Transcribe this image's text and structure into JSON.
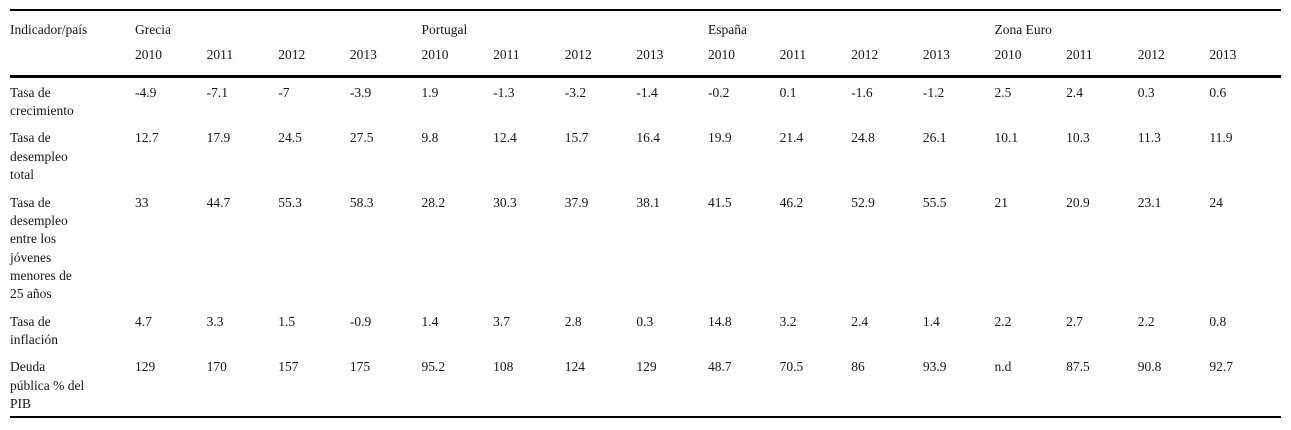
{
  "colors": {
    "text": "#161616",
    "rule": "#000000",
    "background": "#ffffff"
  },
  "table": {
    "corner_label": "Indicador/país",
    "groups": [
      {
        "name": "Grecia",
        "years": [
          "2010",
          "2011",
          "2012",
          "2013"
        ]
      },
      {
        "name": "Portugal",
        "years": [
          "2010",
          "2011",
          "2012",
          "2013"
        ]
      },
      {
        "name": "España",
        "years": [
          "2010",
          "2011",
          "2012",
          "2013"
        ]
      },
      {
        "name": "Zona Euro",
        "years": [
          "2010",
          "2011",
          "2012",
          "2013"
        ]
      }
    ],
    "rows": [
      {
        "label": "Tasa de crecimiento",
        "values": [
          "-4.9",
          "-7.1",
          "-7",
          "-3.9",
          "1.9",
          "-1.3",
          "-3.2",
          "-1.4",
          "-0.2",
          "0.1",
          "-1.6",
          "-1.2",
          "2.5",
          "2.4",
          "0.3",
          "0.6"
        ]
      },
      {
        "label": "Tasa de desempleo total",
        "values": [
          "12.7",
          "17.9",
          "24.5",
          "27.5",
          "9.8",
          "12.4",
          "15.7",
          "16.4",
          "19.9",
          "21.4",
          "24.8",
          "26.1",
          "10.1",
          "10.3",
          "11.3",
          "11.9"
        ]
      },
      {
        "label": "Tasa de desempleo entre los jóvenes menores de 25 años",
        "values": [
          "33",
          "44.7",
          "55.3",
          "58.3",
          "28.2",
          "30.3",
          "37.9",
          "38.1",
          "41.5",
          "46.2",
          "52.9",
          "55.5",
          "21",
          "20.9",
          "23.1",
          "24"
        ]
      },
      {
        "label": "Tasa de inflación",
        "values": [
          "4.7",
          "3.3",
          "1.5",
          "-0.9",
          "1.4",
          "3.7",
          "2.8",
          "0.3",
          "14.8",
          "3.2",
          "2.4",
          "1.4",
          "2.2",
          "2.7",
          "2.2",
          "0.8"
        ]
      },
      {
        "label": "Deuda pública % del PIB",
        "values": [
          "129",
          "170",
          "157",
          "175",
          "95.2",
          "108",
          "124",
          "129",
          "48.7",
          "70.5",
          "86",
          "93.9",
          "n.d",
          "87.5",
          "90.8",
          "92.7"
        ]
      }
    ]
  }
}
